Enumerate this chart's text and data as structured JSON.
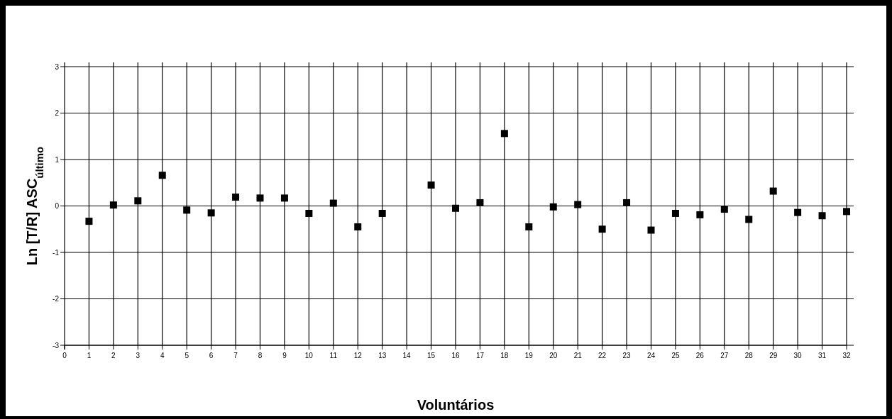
{
  "chart_data": {
    "type": "scatter",
    "xlabel": "Voluntários",
    "ylabel": "Ln [T/R] ASC$_{último}$",
    "x": [
      1,
      2,
      3,
      4,
      5,
      6,
      7,
      8,
      9,
      10,
      11,
      12,
      13,
      15,
      16,
      17,
      18,
      19,
      20,
      21,
      22,
      23,
      24,
      25,
      26,
      27,
      28,
      29,
      30,
      31,
      32
    ],
    "series": [
      {
        "color": "#000000",
        "values": [
          -0.33,
          0.02,
          0.11,
          0.66,
          -0.09,
          -0.15,
          0.19,
          0.17,
          0.17,
          -0.16,
          0.06,
          -0.45,
          -0.16,
          0.45,
          -0.05,
          0.07,
          1.56,
          -0.45,
          -0.02,
          0.03,
          -0.5,
          0.07,
          -0.52,
          -0.16,
          -0.19,
          -0.07,
          -0.29,
          0.32,
          -0.14,
          -0.21,
          -0.12
        ]
      }
    ],
    "xlim": [
      0,
      32
    ],
    "xticks": [
      0,
      1,
      2,
      3,
      4,
      5,
      6,
      7,
      8,
      9,
      10,
      11,
      12,
      13,
      14,
      15,
      16,
      17,
      18,
      19,
      20,
      21,
      22,
      23,
      24,
      25,
      26,
      27,
      28,
      29,
      30,
      31,
      32
    ],
    "ylim": [
      -3,
      3
    ],
    "yticks": [
      -3,
      -2,
      -1,
      0,
      1,
      2,
      3
    ],
    "grid": true,
    "marker": "square"
  }
}
